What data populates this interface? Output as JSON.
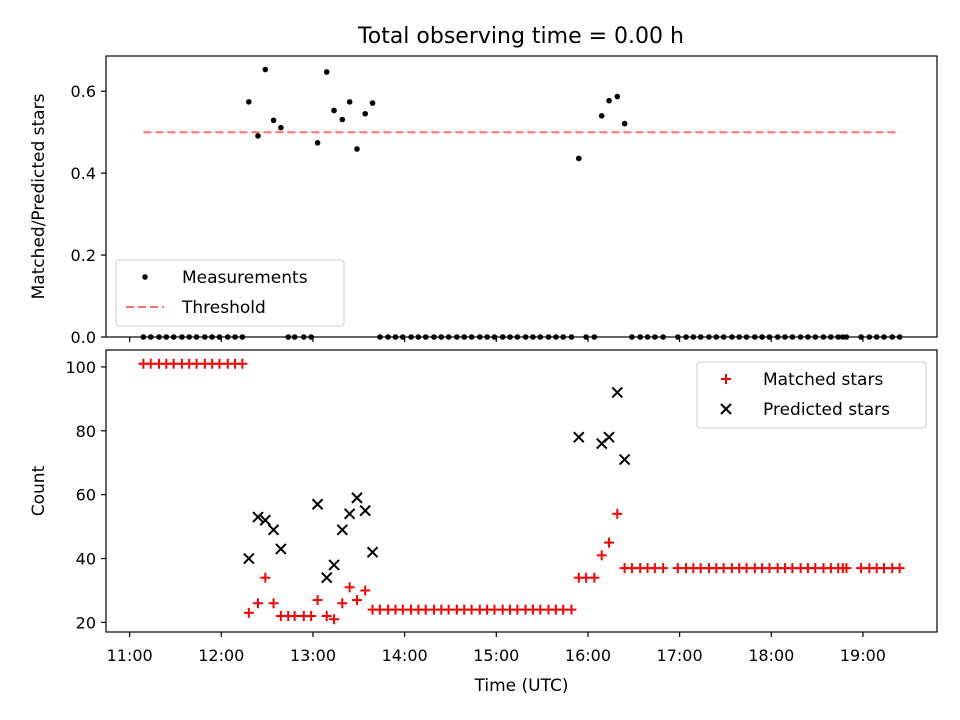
{
  "title": "Total observing time = 0.00 h",
  "chart_data": [
    {
      "type": "scatter",
      "panel": "top",
      "title": "Total observing time = 0.00 h",
      "ylabel": "Matched/Predicted stars",
      "xlabel": "",
      "x_unit": "hours UTC",
      "xlim": [
        10.742,
        19.808
      ],
      "ylim": [
        0.0,
        0.686
      ],
      "yticks": [
        0.0,
        0.2,
        0.4,
        0.6
      ],
      "ytick_labels": [
        "0.0",
        "0.2",
        "0.4",
        "0.6"
      ],
      "legend": {
        "location": "lower-left",
        "entries": [
          "Measurements",
          "Threshold"
        ]
      },
      "threshold": {
        "name": "Threshold",
        "value": 0.5,
        "x_range": [
          11.15,
          19.4
        ],
        "color": "#ff7070",
        "style": "dashed"
      },
      "series": [
        {
          "name": "Measurements",
          "color": "#000000",
          "marker": "dot",
          "x": [
            11.15,
            11.23,
            11.32,
            11.4,
            11.48,
            11.57,
            11.65,
            11.73,
            11.82,
            11.9,
            11.98,
            12.07,
            12.15,
            12.23,
            12.3,
            12.4,
            12.48,
            12.57,
            12.65,
            12.73,
            12.8,
            12.9,
            12.98,
            13.05,
            13.15,
            13.23,
            13.32,
            13.4,
            13.48,
            13.57,
            13.65,
            13.73,
            13.82,
            13.9,
            13.98,
            14.07,
            14.15,
            14.23,
            14.32,
            14.4,
            14.48,
            14.57,
            14.65,
            14.73,
            14.82,
            14.9,
            14.98,
            15.07,
            15.15,
            15.23,
            15.32,
            15.4,
            15.48,
            15.57,
            15.65,
            15.73,
            15.82,
            15.9,
            15.98,
            16.07,
            16.15,
            16.23,
            16.32,
            16.4,
            16.48,
            16.57,
            16.65,
            16.73,
            16.82,
            16.98,
            17.07,
            17.15,
            17.23,
            17.32,
            17.4,
            17.48,
            17.57,
            17.65,
            17.73,
            17.82,
            17.9,
            17.98,
            18.07,
            18.15,
            18.23,
            18.32,
            18.4,
            18.48,
            18.57,
            18.65,
            18.73,
            18.78,
            18.82,
            18.98,
            19.07,
            19.15,
            19.23,
            19.32,
            19.4
          ],
          "y": [
            0,
            0,
            0,
            0,
            0,
            0,
            0,
            0,
            0,
            0,
            0,
            0,
            0,
            0,
            0.574,
            0.491,
            0.653,
            0.529,
            0.511,
            0,
            0,
            0,
            0,
            0.474,
            0.647,
            0.553,
            0.531,
            0.574,
            0.459,
            0.545,
            0.571,
            0,
            0,
            0,
            0,
            0,
            0,
            0,
            0,
            0,
            0,
            0,
            0,
            0,
            0,
            0,
            0,
            0,
            0,
            0,
            0,
            0,
            0,
            0,
            0,
            0,
            0,
            0.436,
            0,
            0,
            0.54,
            0.577,
            0.587,
            0.521,
            0,
            0,
            0,
            0,
            0,
            0,
            0,
            0,
            0,
            0,
            0,
            0,
            0,
            0,
            0,
            0,
            0,
            0,
            0,
            0,
            0,
            0,
            0,
            0,
            0,
            0,
            0,
            0,
            0,
            0,
            0,
            0,
            0,
            0,
            0
          ]
        }
      ]
    },
    {
      "type": "scatter",
      "panel": "bottom",
      "title": "",
      "ylabel": "Count",
      "xlabel": "Time (UTC)",
      "x_unit": "hours UTC",
      "xlim": [
        10.742,
        19.808
      ],
      "ylim": [
        17.0,
        105.3
      ],
      "yticks": [
        20,
        40,
        60,
        80,
        100
      ],
      "ytick_labels": [
        "20",
        "40",
        "60",
        "80",
        "100"
      ],
      "xticks": [
        11,
        12,
        13,
        14,
        15,
        16,
        17,
        18,
        19
      ],
      "xtick_labels": [
        "11:00",
        "12:00",
        "13:00",
        "14:00",
        "15:00",
        "16:00",
        "17:00",
        "18:00",
        "19:00"
      ],
      "legend": {
        "location": "upper-right",
        "entries": [
          "Matched stars",
          "Predicted stars"
        ]
      },
      "series": [
        {
          "name": "Matched stars",
          "color": "#ff0000",
          "marker": "plus",
          "x": [
            11.15,
            11.23,
            11.32,
            11.4,
            11.48,
            11.57,
            11.65,
            11.73,
            11.82,
            11.9,
            11.98,
            12.07,
            12.15,
            12.23,
            12.3,
            12.4,
            12.48,
            12.57,
            12.65,
            12.73,
            12.8,
            12.9,
            12.98,
            13.05,
            13.15,
            13.23,
            13.32,
            13.4,
            13.48,
            13.57,
            13.65,
            13.73,
            13.82,
            13.9,
            13.98,
            14.07,
            14.15,
            14.23,
            14.32,
            14.4,
            14.48,
            14.57,
            14.65,
            14.73,
            14.82,
            14.9,
            14.98,
            15.07,
            15.15,
            15.23,
            15.32,
            15.4,
            15.48,
            15.57,
            15.65,
            15.73,
            15.82,
            15.9,
            15.98,
            16.07,
            16.15,
            16.23,
            16.32,
            16.4,
            16.48,
            16.57,
            16.65,
            16.73,
            16.82,
            16.98,
            17.07,
            17.15,
            17.23,
            17.32,
            17.4,
            17.48,
            17.57,
            17.65,
            17.73,
            17.82,
            17.9,
            17.98,
            18.07,
            18.15,
            18.23,
            18.32,
            18.4,
            18.48,
            18.57,
            18.65,
            18.73,
            18.78,
            18.82,
            18.98,
            19.07,
            19.15,
            19.23,
            19.32,
            19.4
          ],
          "y": [
            101,
            101,
            101,
            101,
            101,
            101,
            101,
            101,
            101,
            101,
            101,
            101,
            101,
            101,
            23,
            26,
            34,
            26,
            22,
            22,
            22,
            22,
            22,
            27,
            22,
            21,
            26,
            31,
            27,
            30,
            24,
            24,
            24,
            24,
            24,
            24,
            24,
            24,
            24,
            24,
            24,
            24,
            24,
            24,
            24,
            24,
            24,
            24,
            24,
            24,
            24,
            24,
            24,
            24,
            24,
            24,
            24,
            34,
            34,
            34,
            41,
            45,
            54,
            37,
            37,
            37,
            37,
            37,
            37,
            37,
            37,
            37,
            37,
            37,
            37,
            37,
            37,
            37,
            37,
            37,
            37,
            37,
            37,
            37,
            37,
            37,
            37,
            37,
            37,
            37,
            37,
            37,
            37,
            37,
            37,
            37,
            37,
            37,
            37
          ]
        },
        {
          "name": "Predicted stars",
          "color": "#000000",
          "marker": "cross",
          "x": [
            12.3,
            12.4,
            12.48,
            12.57,
            12.65,
            13.05,
            13.15,
            13.23,
            13.32,
            13.4,
            13.48,
            13.57,
            13.65,
            15.9,
            16.15,
            16.23,
            16.32,
            16.4
          ],
          "y": [
            40,
            53,
            52,
            49,
            43,
            57,
            34,
            38,
            49,
            54,
            59,
            55,
            42,
            78,
            76,
            78,
            92,
            71
          ]
        }
      ]
    }
  ]
}
